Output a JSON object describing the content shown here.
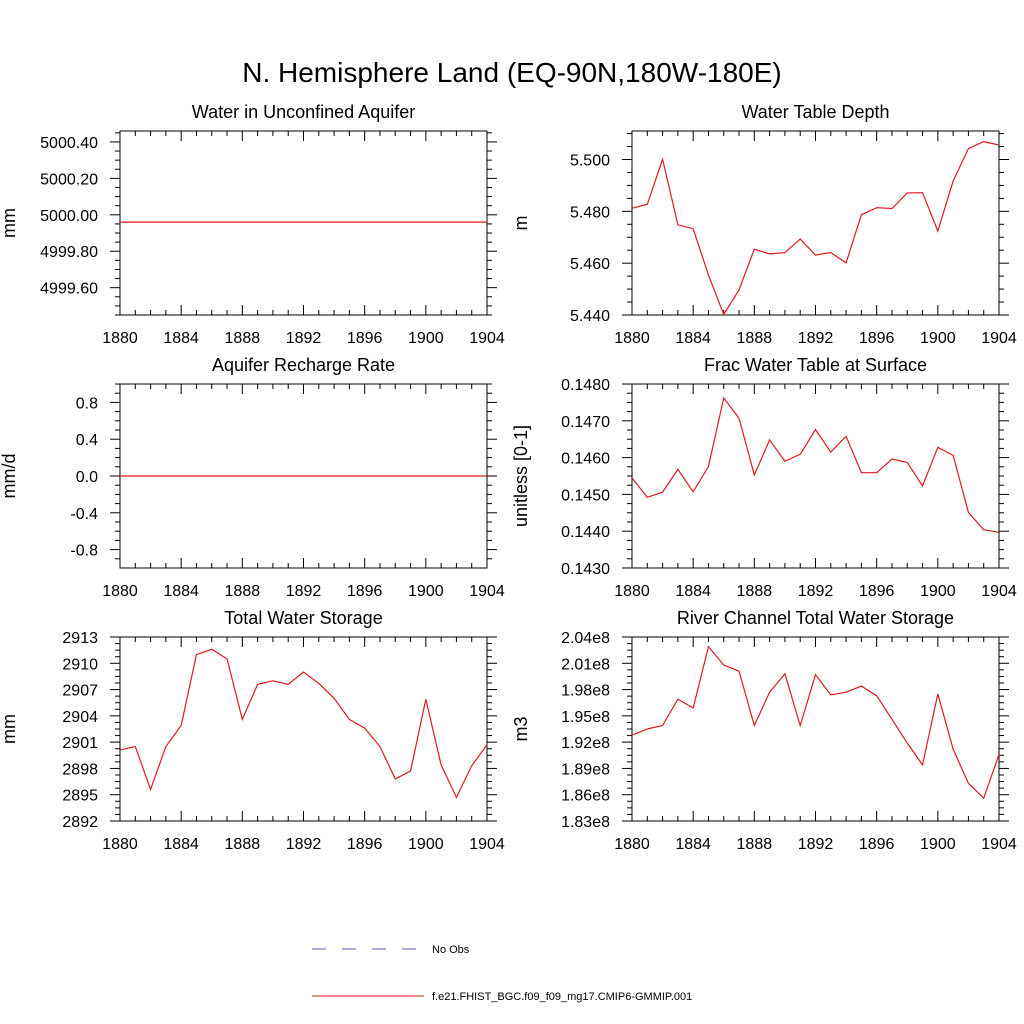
{
  "title": "N. Hemisphere Land (EQ-90N,180W-180E)",
  "legend": {
    "entries": [
      {
        "label": "No Obs",
        "color": "#5b5bb8",
        "style": "dashed"
      },
      {
        "label": "f.e21.FHIST_BGC.f09_f09_mg17.CMIP6-GMMIP.001",
        "color": "#e0191f",
        "style": "solid"
      }
    ]
  },
  "colors": {
    "series": "#e0191f",
    "axes": "#000000"
  },
  "chart_data": [
    {
      "type": "line",
      "title": "Water in Unconfined Aquifer",
      "ylabel": "mm",
      "xlim": [
        1880,
        1904
      ],
      "ylim": [
        4999.45,
        5000.46
      ],
      "xticks": [
        1880,
        1884,
        1888,
        1892,
        1896,
        1900,
        1904
      ],
      "xtick_labels": [
        "1880",
        "1884",
        "1888",
        "1892",
        "1896",
        "1900",
        "1904"
      ],
      "yticks": [
        4999.6,
        4999.8,
        5000.0,
        5000.2,
        5000.4
      ],
      "ytick_labels": [
        "4999.60",
        "4999.80",
        "5000.00",
        "5000.20",
        "5000.40"
      ],
      "grid": false,
      "series": [
        {
          "x": [
            1880,
            1904
          ],
          "values": [
            4999.96,
            4999.96
          ]
        }
      ]
    },
    {
      "type": "line",
      "title": "Water Table Depth",
      "ylabel": "m",
      "xlim": [
        1880,
        1904
      ],
      "ylim": [
        5.44,
        5.511
      ],
      "xticks": [
        1880,
        1884,
        1888,
        1892,
        1896,
        1900,
        1904
      ],
      "xtick_labels": [
        "1880",
        "1884",
        "1888",
        "1892",
        "1896",
        "1900",
        "1904"
      ],
      "yticks": [
        5.44,
        5.46,
        5.48,
        5.5
      ],
      "ytick_labels": [
        "5.440",
        "5.460",
        "5.480",
        "5.500"
      ],
      "grid": false,
      "series": [
        {
          "x": [
            1880,
            1881,
            1882,
            1883,
            1884,
            1885,
            1886,
            1887,
            1888,
            1889,
            1890,
            1891,
            1892,
            1893,
            1894,
            1895,
            1896,
            1897,
            1898,
            1899,
            1900,
            1901,
            1902,
            1903,
            1904
          ],
          "values": [
            5.4812,
            5.4827,
            5.5001,
            5.4748,
            5.4733,
            5.4554,
            5.4402,
            5.4497,
            5.4654,
            5.4636,
            5.4641,
            5.4693,
            5.4631,
            5.4641,
            5.4601,
            5.4787,
            5.4814,
            5.4811,
            5.4871,
            5.4872,
            5.4724,
            5.4917,
            5.5042,
            5.5069,
            5.5056
          ]
        }
      ]
    },
    {
      "type": "line",
      "title": "Aquifer Recharge Rate",
      "ylabel": "mm/d",
      "xlim": [
        1880,
        1904
      ],
      "ylim": [
        -1.0,
        1.0
      ],
      "xticks": [
        1880,
        1884,
        1888,
        1892,
        1896,
        1900,
        1904
      ],
      "xtick_labels": [
        "1880",
        "1884",
        "1888",
        "1892",
        "1896",
        "1900",
        "1904"
      ],
      "yticks": [
        -0.8,
        -0.4,
        0.0,
        0.4,
        0.8
      ],
      "ytick_labels": [
        "-0.8",
        "-0.4",
        "0.0",
        "0.4",
        "0.8"
      ],
      "grid": false,
      "series": [
        {
          "x": [
            1880,
            1904
          ],
          "values": [
            0.0,
            0.0
          ]
        }
      ]
    },
    {
      "type": "line",
      "title": "Frac Water Table at Surface",
      "ylabel": "unitless [0-1]",
      "xlim": [
        1880,
        1904
      ],
      "ylim": [
        0.143,
        0.148
      ],
      "xticks": [
        1880,
        1884,
        1888,
        1892,
        1896,
        1900,
        1904
      ],
      "xtick_labels": [
        "1880",
        "1884",
        "1888",
        "1892",
        "1896",
        "1900",
        "1904"
      ],
      "yticks": [
        0.143,
        0.144,
        0.145,
        0.146,
        0.147,
        0.148
      ],
      "ytick_labels": [
        "0.1430",
        "0.1440",
        "0.1450",
        "0.1460",
        "0.1470",
        "0.1480"
      ],
      "grid": false,
      "series": [
        {
          "x": [
            1880,
            1881,
            1882,
            1883,
            1884,
            1885,
            1886,
            1887,
            1888,
            1889,
            1890,
            1891,
            1892,
            1893,
            1894,
            1895,
            1896,
            1897,
            1898,
            1899,
            1900,
            1901,
            1902,
            1903,
            1904
          ],
          "values": [
            0.14545,
            0.14492,
            0.14506,
            0.14568,
            0.14507,
            0.14576,
            0.14762,
            0.14707,
            0.14553,
            0.14648,
            0.1459,
            0.14609,
            0.14676,
            0.14615,
            0.14658,
            0.14559,
            0.14559,
            0.14596,
            0.14587,
            0.14523,
            0.14628,
            0.14606,
            0.14451,
            0.14404,
            0.14397
          ]
        }
      ]
    },
    {
      "type": "line",
      "title": "Total Water Storage",
      "ylabel": "mm",
      "xlim": [
        1880,
        1904
      ],
      "ylim": [
        2892,
        2913
      ],
      "xticks": [
        1880,
        1884,
        1888,
        1892,
        1896,
        1900,
        1904
      ],
      "xtick_labels": [
        "1880",
        "1884",
        "1888",
        "1892",
        "1896",
        "1900",
        "1904"
      ],
      "yticks": [
        2892,
        2895,
        2898,
        2901,
        2904,
        2907,
        2910,
        2913
      ],
      "ytick_labels": [
        "2892",
        "2895",
        "2898",
        "2901",
        "2904",
        "2907",
        "2910",
        "2913"
      ],
      "grid": false,
      "series": [
        {
          "x": [
            1880,
            1881,
            1882,
            1883,
            1884,
            1885,
            1886,
            1887,
            1888,
            1889,
            1890,
            1891,
            1892,
            1893,
            1894,
            1895,
            1896,
            1897,
            1898,
            1899,
            1900,
            1901,
            1902,
            1903,
            1904
          ],
          "values": [
            2900.1,
            2900.5,
            2895.6,
            2900.5,
            2902.9,
            2911.0,
            2911.6,
            2910.5,
            2903.6,
            2907.6,
            2908.0,
            2907.6,
            2909.0,
            2907.7,
            2906.0,
            2903.6,
            2902.6,
            2900.5,
            2896.8,
            2897.7,
            2905.9,
            2898.4,
            2894.7,
            2898.3,
            2900.7
          ]
        }
      ]
    },
    {
      "type": "line",
      "title": "River Channel Total Water Storage",
      "ylabel": "m3",
      "xlim": [
        1880,
        1904
      ],
      "ylim": [
        183000000.0,
        204000000.0
      ],
      "xticks": [
        1880,
        1884,
        1888,
        1892,
        1896,
        1900,
        1904
      ],
      "xtick_labels": [
        "1880",
        "1884",
        "1888",
        "1892",
        "1896",
        "1900",
        "1904"
      ],
      "yticks": [
        183000000.0,
        186000000.0,
        189000000.0,
        192000000.0,
        195000000.0,
        198000000.0,
        201000000.0,
        204000000.0
      ],
      "ytick_labels": [
        "1.83e8",
        "1.86e8",
        "1.89e8",
        "1.92e8",
        "1.95e8",
        "1.98e8",
        "2.01e8",
        "2.04e8"
      ],
      "grid": false,
      "series": [
        {
          "x": [
            1880,
            1881,
            1882,
            1883,
            1884,
            1885,
            1886,
            1887,
            1888,
            1889,
            1890,
            1891,
            1892,
            1893,
            1894,
            1895,
            1896,
            1897,
            1898,
            1899,
            1900,
            1901,
            1902,
            1903,
            1904
          ],
          "values": [
            192800000.0,
            193500000.0,
            193900000.0,
            196900000.0,
            195900000.0,
            202900000.0,
            200800000.0,
            200100000.0,
            193900000.0,
            197700000.0,
            199800000.0,
            193900000.0,
            199700000.0,
            197400000.0,
            197700000.0,
            198400000.0,
            197300000.0,
            194600000.0,
            191900000.0,
            189400000.0,
            197500000.0,
            191200000.0,
            187300000.0,
            185600000.0,
            190600000.0
          ]
        }
      ]
    }
  ]
}
